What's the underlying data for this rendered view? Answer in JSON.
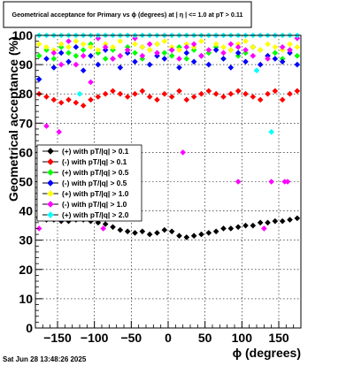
{
  "timestamp": "Sat Jun 28 13:48:26 2025",
  "chart_data": {
    "type": "scatter",
    "title": "Geometrical acceptance for Primary vs ϕ (degrees) at | η | <= 1.0 at pT > 0.11",
    "xlabel": "ϕ (degrees)",
    "ylabel": "Geometrical acceptance (%)",
    "xlim": [
      -180,
      180
    ],
    "ylim": [
      0,
      100
    ],
    "grid": true,
    "legend_position": "center-left",
    "xticks": [
      -150,
      -100,
      -50,
      0,
      50,
      100,
      150
    ],
    "xtick_labels": [
      "−150",
      "−100",
      "−50",
      "0",
      "50",
      "100",
      "150"
    ],
    "yticks": [
      0,
      10,
      20,
      30,
      40,
      50,
      60,
      70,
      80,
      90,
      100
    ],
    "series": [
      {
        "name": "(+) with pT/|q| > 0.1",
        "color": "#000000",
        "x": [
          -175,
          -165,
          -155,
          -145,
          -135,
          -125,
          -115,
          -105,
          -95,
          -85,
          -75,
          -65,
          -55,
          -45,
          -35,
          -25,
          -15,
          -5,
          5,
          15,
          25,
          35,
          45,
          55,
          65,
          75,
          85,
          95,
          105,
          115,
          125,
          135,
          145,
          155,
          165,
          175
        ],
        "y": [
          37.5,
          37,
          37,
          36.5,
          36.5,
          37,
          37,
          36.5,
          36,
          35.5,
          34.5,
          33.5,
          33,
          32.5,
          33,
          32,
          32.5,
          33.5,
          33,
          31.5,
          31,
          31.5,
          32,
          32.5,
          33,
          34,
          34,
          34.5,
          35,
          35,
          36,
          36,
          36.5,
          36.5,
          37,
          37.5
        ]
      },
      {
        "name": "(-) with pT/|q| > 0.1",
        "color": "#ff0000",
        "x": [
          -175,
          -165,
          -155,
          -145,
          -135,
          -125,
          -115,
          -105,
          -95,
          -85,
          -75,
          -65,
          -55,
          -45,
          -35,
          -25,
          -15,
          -5,
          5,
          15,
          25,
          35,
          45,
          55,
          65,
          75,
          85,
          95,
          105,
          115,
          125,
          135,
          145,
          155,
          165,
          175
        ],
        "y": [
          80,
          79,
          78,
          77,
          78,
          77,
          76,
          78,
          79,
          80,
          81,
          80,
          79,
          80,
          81,
          79,
          78,
          80,
          79,
          81,
          78,
          79,
          80,
          81,
          80,
          79,
          80,
          81,
          80,
          79,
          78,
          80,
          81,
          78,
          80,
          81
        ]
      },
      {
        "name": "(+) with pT/|q| > 0.5",
        "color": "#00ff00",
        "x": [
          -175,
          -165,
          -155,
          -145,
          -135,
          -125,
          -115,
          -105,
          -95,
          -85,
          -75,
          -65,
          -55,
          -45,
          -35,
          -25,
          -15,
          -5,
          5,
          15,
          25,
          35,
          45,
          55,
          65,
          75,
          85,
          95,
          105,
          115,
          125,
          135,
          145,
          155,
          165,
          175
        ],
        "y": [
          93,
          95,
          92,
          96,
          94,
          93,
          95,
          97,
          94,
          92,
          95,
          93,
          96,
          94,
          92,
          95,
          97,
          94,
          93,
          96,
          92,
          95,
          93,
          94,
          96,
          92,
          95,
          93,
          94,
          96,
          95,
          93,
          94,
          92,
          95,
          93
        ]
      },
      {
        "name": "(-) with pT/|q| > 0.5",
        "color": "#0000ff",
        "x": [
          -175,
          -165,
          -155,
          -145,
          -135,
          -125,
          -115,
          -105,
          -95,
          -85,
          -75,
          -65,
          -55,
          -45,
          -35,
          -25,
          -15,
          -5,
          5,
          15,
          25,
          35,
          45,
          55,
          65,
          75,
          85,
          95,
          105,
          115,
          125,
          135,
          145,
          155,
          165,
          175
        ],
        "y": [
          85,
          92,
          89,
          94,
          91,
          96,
          88,
          93,
          90,
          95,
          92,
          89,
          94,
          91,
          96,
          90,
          93,
          92,
          95,
          89,
          94,
          91,
          93,
          90,
          95,
          92,
          89,
          94,
          91,
          96,
          90,
          93,
          92,
          91,
          94,
          90
        ]
      },
      {
        "name": "(+) with pT/|q| > 1.0",
        "color": "#ffff00",
        "x": [
          -175,
          -165,
          -155,
          -145,
          -135,
          -125,
          -115,
          -105,
          -95,
          -85,
          -75,
          -65,
          -55,
          -45,
          -35,
          -25,
          -15,
          -5,
          5,
          15,
          25,
          35,
          45,
          55,
          65,
          75,
          85,
          95,
          105,
          115,
          125,
          135,
          145,
          155,
          165,
          175
        ],
        "y": [
          97,
          96,
          95,
          97,
          96,
          98,
          97,
          96,
          95,
          97,
          96,
          98,
          95,
          97,
          96,
          95,
          97,
          98,
          96,
          95,
          97,
          96,
          98,
          95,
          97,
          96,
          95,
          97,
          98,
          96,
          95,
          97,
          96,
          95,
          97,
          96
        ]
      },
      {
        "name": "(-) with pT/|q| > 1.0",
        "color": "#ff00ff",
        "x": [
          -175,
          -165,
          -155,
          -145,
          -135,
          -125,
          -115,
          -105,
          -95,
          -85,
          -75,
          -65,
          -55,
          -45,
          -35,
          -25,
          -15,
          -5,
          5,
          15,
          25,
          35,
          45,
          55,
          65,
          75,
          85,
          95,
          105,
          115,
          125,
          135,
          145,
          155,
          165,
          175,
          -104,
          -88,
          -76,
          20,
          95,
          130,
          140,
          158,
          162,
          -148
        ],
        "y": [
          34,
          69,
          94,
          90,
          98,
          90,
          93,
          84,
          99,
          96,
          92,
          93,
          95,
          99,
          93,
          97,
          94,
          100,
          95,
          92,
          96,
          97,
          93,
          95,
          100,
          94,
          97,
          96,
          95,
          93,
          100,
          92,
          100,
          96,
          95,
          99,
          50,
          34,
          50,
          60,
          50,
          34,
          50,
          50,
          50,
          67
        ]
      },
      {
        "name": "(+) with pT/|q| > 2.0",
        "color": "#00ffff",
        "x": [
          -175,
          -165,
          -155,
          -145,
          -135,
          -125,
          -115,
          -105,
          -95,
          -85,
          -75,
          -65,
          -55,
          -45,
          -35,
          -25,
          -15,
          -5,
          5,
          15,
          25,
          35,
          45,
          55,
          65,
          75,
          85,
          95,
          105,
          115,
          125,
          135,
          145,
          155,
          165,
          175,
          -120,
          120,
          140
        ],
        "y": [
          100,
          100,
          100,
          100,
          100,
          100,
          100,
          100,
          100,
          100,
          100,
          100,
          100,
          100,
          100,
          100,
          100,
          100,
          100,
          100,
          100,
          100,
          100,
          100,
          100,
          100,
          100,
          100,
          100,
          100,
          100,
          100,
          100,
          100,
          100,
          100,
          80,
          88,
          67
        ]
      }
    ]
  }
}
